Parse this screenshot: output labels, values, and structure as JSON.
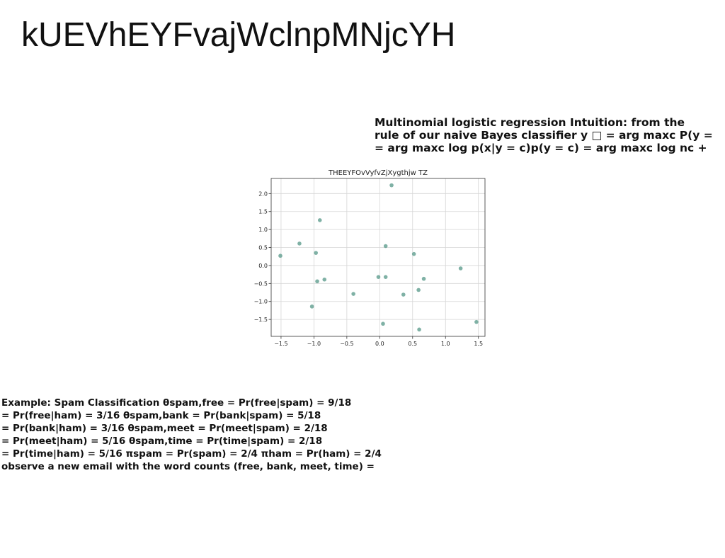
{
  "page": {
    "title": "kUEVhEYFvajWclnpMNjcYH"
  },
  "intuition": {
    "lines": [
      "Multinomial logistic regression Intuition: from the",
      "rule of our naive Bayes classifier y □ = arg maxc P(y =",
      "= arg maxc log p(x|y = c)p(y = c) = arg maxc log nc +"
    ]
  },
  "example": {
    "lines": [
      "Example: Spam Classification θspam,free = Pr(free|spam) = 9/18",
      "= Pr(free|ham) = 3/16 θspam,bank = Pr(bank|spam) = 5/18",
      "= Pr(bank|ham) = 3/16 θspam,meet = Pr(meet|spam) = 2/18",
      "= Pr(meet|ham) = 5/16 θspam,time = Pr(time|spam) = 2/18",
      "= Pr(time|ham) = 5/16 πspam = Pr(spam) = 2/4 πham = Pr(ham) = 2/4",
      "observe a new email with the word counts (free, bank, meet, time) ="
    ]
  },
  "chart_data": {
    "type": "scatter",
    "title": "THEEYFOvVyfvZjXygthjw TZ",
    "xlabel": "",
    "ylabel": "",
    "xlim": [
      -1.65,
      1.6
    ],
    "ylim": [
      -1.97,
      2.42
    ],
    "xticks": [
      -1.5,
      -1.0,
      -0.5,
      0.0,
      0.5,
      1.0,
      1.5
    ],
    "xtick_labels": [
      "−1.5",
      "−1.0",
      "−0.5",
      "0.0",
      "0.5",
      "1.0",
      "1.5"
    ],
    "yticks": [
      -1.5,
      -1.0,
      -0.5,
      0.0,
      0.5,
      1.0,
      1.5,
      2.0
    ],
    "ytick_labels": [
      "−1.5",
      "−1.0",
      "−0.5",
      "0.0",
      "0.5",
      "1.0",
      "1.5",
      "2.0"
    ],
    "grid": true,
    "point_color": "#5f9e8f",
    "points": [
      {
        "x": 0.18,
        "y": 2.23
      },
      {
        "x": -0.91,
        "y": 1.26
      },
      {
        "x": -1.22,
        "y": 0.61
      },
      {
        "x": -0.97,
        "y": 0.35
      },
      {
        "x": 0.09,
        "y": 0.54
      },
      {
        "x": 0.52,
        "y": 0.32
      },
      {
        "x": -1.51,
        "y": 0.27
      },
      {
        "x": 1.23,
        "y": -0.08
      },
      {
        "x": -0.02,
        "y": -0.32
      },
      {
        "x": 0.09,
        "y": -0.32
      },
      {
        "x": 0.67,
        "y": -0.37
      },
      {
        "x": -0.84,
        "y": -0.39
      },
      {
        "x": -0.95,
        "y": -0.44
      },
      {
        "x": 0.59,
        "y": -0.68
      },
      {
        "x": -0.4,
        "y": -0.79
      },
      {
        "x": 0.36,
        "y": -0.81
      },
      {
        "x": -1.03,
        "y": -1.14
      },
      {
        "x": 1.47,
        "y": -1.57
      },
      {
        "x": 0.05,
        "y": -1.62
      },
      {
        "x": 0.6,
        "y": -1.78
      }
    ]
  }
}
